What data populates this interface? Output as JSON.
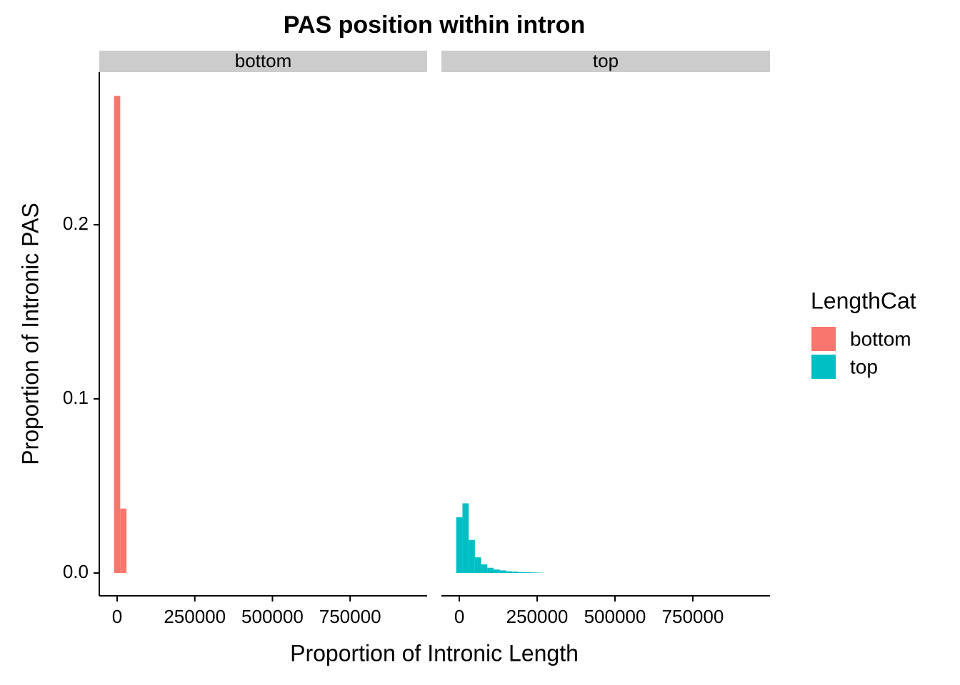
{
  "chart_data": {
    "type": "histogram",
    "title": "PAS position within intron",
    "xlabel": "Proportion of Intronic Length",
    "ylabel": "Proportion of Intronic PAS",
    "facets": [
      "bottom",
      "top"
    ],
    "xlim": [
      -57500,
      998000
    ],
    "xticks": [
      0,
      250000,
      500000,
      750000
    ],
    "ylim": [
      -0.0131,
      0.2877
    ],
    "yticks": [
      {
        "value": 0,
        "label": "0.0"
      },
      {
        "value": 0.1,
        "label": "0.1"
      },
      {
        "value": 0.2,
        "label": "0.2"
      }
    ],
    "legend": {
      "title": "LengthCat",
      "position": "right"
    },
    "series": [
      {
        "name": "bottom",
        "color": "#f8766d",
        "bins": [
          -10000,
          10000,
          30000
        ],
        "values": [
          0.274,
          0.037
        ]
      },
      {
        "name": "top",
        "color": "#00bfc4",
        "bins": [
          -10000,
          10000,
          30000,
          50000,
          70000,
          90000,
          110000,
          130000,
          150000,
          170000,
          190000,
          210000,
          230000,
          250000,
          270000
        ],
        "values": [
          0.032,
          0.04,
          0.019,
          0.009,
          0.005,
          0.003,
          0.002,
          0.0015,
          0.001,
          0.0008,
          0.0005,
          0.0004,
          0.0003,
          0.0002
        ]
      }
    ]
  }
}
